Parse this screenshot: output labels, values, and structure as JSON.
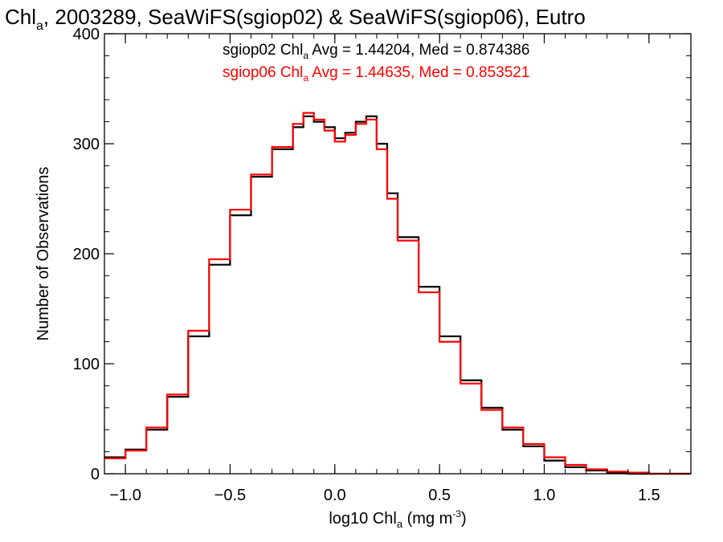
{
  "chart_data": {
    "type": "line",
    "title": {
      "prefix": "Chl",
      "sub": "a",
      "rest": ", 2003289, SeaWiFS(sgiop02) & SeaWiFS(sgiop06), Eutro"
    },
    "xlabel": {
      "pre": "log10 Chl",
      "sub": "a",
      "mid": " (mg m",
      "sup": "-3",
      "post": ")"
    },
    "ylabel": "Number of Observations",
    "xlim": [
      -1.1,
      1.7
    ],
    "ylim": [
      0,
      400
    ],
    "x_ticks": [
      -1.0,
      -0.5,
      0.0,
      0.5,
      1.0,
      1.5
    ],
    "x_tick_labels": [
      "−1.0",
      "−0.5",
      "0.0",
      "0.5",
      "1.0",
      "1.5"
    ],
    "y_ticks": [
      0,
      100,
      200,
      300,
      400
    ],
    "y_tick_labels": [
      "0",
      "100",
      "200",
      "300",
      "400"
    ],
    "grid": false,
    "legend_placement": "top-center",
    "colors": {
      "sgiop02": "#000000",
      "sgiop06": "#ff0000"
    },
    "legend": [
      {
        "pre": "sgiop02 Chl",
        "sub": "a",
        "post": " Avg = 1.44204, Med = 0.874386",
        "color": "#000000"
      },
      {
        "pre": "sgiop06 Chl",
        "sub": "a",
        "post": " Avg = 1.44635, Med = 0.853521",
        "color": "#ff0000"
      }
    ],
    "x": [
      -1.1,
      -1.0,
      -0.9,
      -0.8,
      -0.7,
      -0.6,
      -0.5,
      -0.4,
      -0.3,
      -0.2,
      -0.15,
      -0.1,
      -0.05,
      0.0,
      0.05,
      0.1,
      0.15,
      0.2,
      0.25,
      0.3,
      0.4,
      0.5,
      0.6,
      0.7,
      0.8,
      0.9,
      1.0,
      1.1,
      1.2,
      1.3,
      1.4,
      1.5,
      1.6,
      1.7
    ],
    "series": [
      {
        "name": "sgiop02",
        "values": [
          15,
          22,
          40,
          70,
          125,
          190,
          235,
          270,
          295,
          315,
          325,
          320,
          315,
          305,
          310,
          320,
          325,
          300,
          255,
          215,
          170,
          125,
          85,
          60,
          40,
          25,
          12,
          6,
          3,
          1,
          0,
          0,
          0,
          0
        ]
      },
      {
        "name": "sgiop06",
        "values": [
          14,
          21,
          42,
          72,
          130,
          195,
          240,
          272,
          297,
          318,
          328,
          322,
          312,
          302,
          308,
          318,
          322,
          295,
          250,
          212,
          165,
          120,
          82,
          58,
          42,
          27,
          15,
          8,
          4,
          2,
          1,
          0,
          0,
          0
        ]
      }
    ]
  }
}
